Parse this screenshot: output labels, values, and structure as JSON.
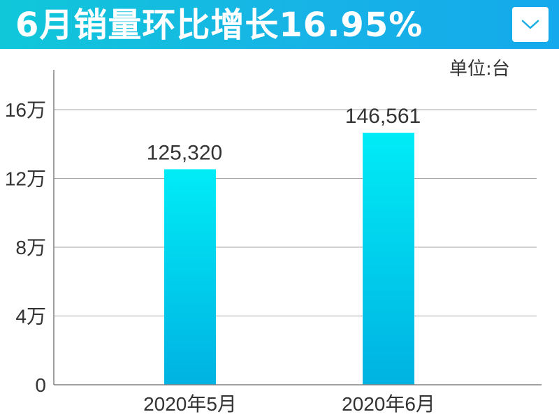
{
  "header": {
    "title": "6月销量环比增长16.95%",
    "dropdown_icon": "chevron-down-icon"
  },
  "colors": {
    "header_gradient": [
      "#10c7d9",
      "#14a9ec"
    ],
    "bar_top": "#00ecf6",
    "bar_bottom": "#00b2e2",
    "grid": "#a6a6a6",
    "axis": "#808080"
  },
  "chart_data": {
    "type": "bar",
    "unit_label": "单位:台",
    "categories": [
      "2020年5月",
      "2020年6月"
    ],
    "values": [
      125320,
      146561
    ],
    "data_labels": [
      "125,320",
      "146,561"
    ],
    "ylim": [
      0,
      160000
    ],
    "yticks": [
      0,
      40000,
      80000,
      120000,
      160000
    ],
    "ytick_labels": [
      "0",
      "4万",
      "8万",
      "12万",
      "16万"
    ],
    "grid": true,
    "legend": "none"
  }
}
